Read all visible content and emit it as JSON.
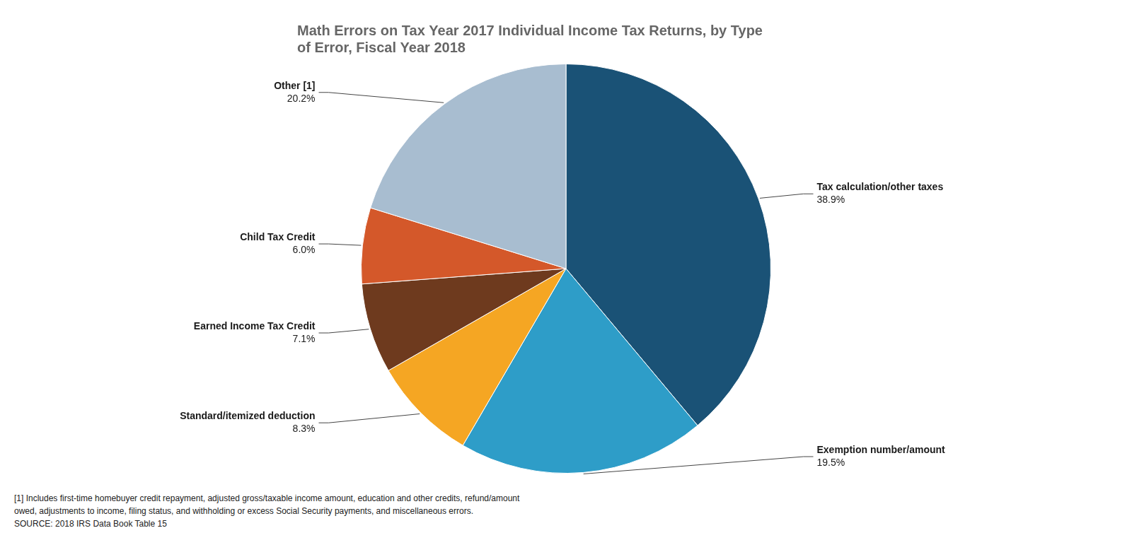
{
  "chart_data": {
    "type": "pie",
    "title": [
      "Math Errors on Tax Year 2017 Individual Income Tax Returns, by Type",
      "of Error, Fiscal Year 2018"
    ],
    "categories": [
      "Tax calculation/other taxes",
      "Exemption number/amount",
      "Standard/itemized deduction",
      "Earned Income Tax Credit",
      "Child Tax Credit",
      "Other [1]"
    ],
    "values": [
      38.9,
      19.5,
      8.3,
      7.1,
      6.0,
      20.2
    ],
    "value_labels": [
      "38.9%",
      "19.5%",
      "8.3%",
      "7.1%",
      "6.0%",
      "20.2%"
    ],
    "colors": [
      "#1A5276",
      "#2E9DC8",
      "#F5A623",
      "#6E3A1E",
      "#D4582A",
      "#A8BDD0"
    ],
    "data_labels": true,
    "annotations": [
      "[1] Includes first-time homebuyer credit repayment, adjusted gross/taxable income amount, education and other credits, refund/amount",
      "owed, adjustments to income, filing status, and withholding or excess Social Security payments, and miscellaneous errors.",
      "SOURCE: 2018 IRS Data Book Table 15"
    ]
  }
}
